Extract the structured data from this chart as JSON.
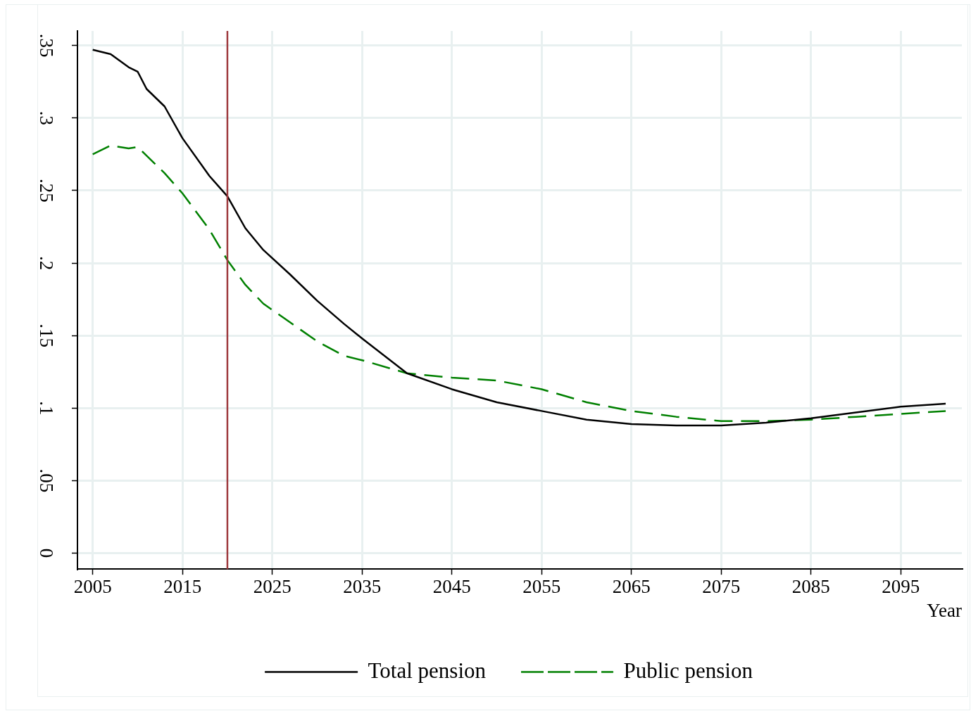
{
  "chart_data": {
    "type": "line",
    "xlabel": "Year",
    "xlim": [
      2003.3,
      2101.8
    ],
    "xticks": [
      2005,
      2015,
      2025,
      2035,
      2045,
      2055,
      2065,
      2075,
      2085,
      2095
    ],
    "ylim": [
      -0.011,
      0.36
    ],
    "yticks": [
      {
        "value": 0,
        "label": "0"
      },
      {
        "value": 0.05,
        "label": ".05"
      },
      {
        "value": 0.1,
        "label": ".1"
      },
      {
        "value": 0.15,
        "label": ".15"
      },
      {
        "value": 0.2,
        "label": ".2"
      },
      {
        "value": 0.25,
        "label": ".25"
      },
      {
        "value": 0.3,
        "label": ".3"
      },
      {
        "value": 0.35,
        "label": ".35"
      }
    ],
    "grid": true,
    "legend": "bottom",
    "marker": "none",
    "ref_lines": [
      {
        "axis": "x",
        "value": 2020,
        "color": "#9e3a3e"
      }
    ],
    "x": [
      2005,
      2007,
      2009,
      2010,
      2011,
      2013,
      2015,
      2018,
      2020,
      2022,
      2024,
      2027,
      2030,
      2033,
      2035,
      2040,
      2045,
      2050,
      2055,
      2060,
      2065,
      2070,
      2075,
      2080,
      2085,
      2090,
      2095,
      2100
    ],
    "series": [
      {
        "name": "Total pension",
        "color": "#000000",
        "line_style": "solid",
        "values": [
          0.347,
          0.344,
          0.335,
          0.332,
          0.32,
          0.308,
          0.286,
          0.26,
          0.246,
          0.224,
          0.209,
          0.192,
          0.174,
          0.158,
          0.148,
          0.124,
          0.113,
          0.104,
          0.098,
          0.092,
          0.089,
          0.088,
          0.088,
          0.09,
          0.093,
          0.097,
          0.101,
          0.103
        ]
      },
      {
        "name": "Public pension",
        "color": "#008000",
        "line_style": "dashed",
        "values": [
          0.275,
          0.281,
          0.279,
          0.28,
          0.274,
          0.262,
          0.248,
          0.223,
          0.202,
          0.185,
          0.172,
          0.159,
          0.146,
          0.136,
          0.133,
          0.124,
          0.121,
          0.119,
          0.113,
          0.104,
          0.098,
          0.094,
          0.091,
          0.091,
          0.092,
          0.094,
          0.096,
          0.098
        ]
      }
    ]
  }
}
